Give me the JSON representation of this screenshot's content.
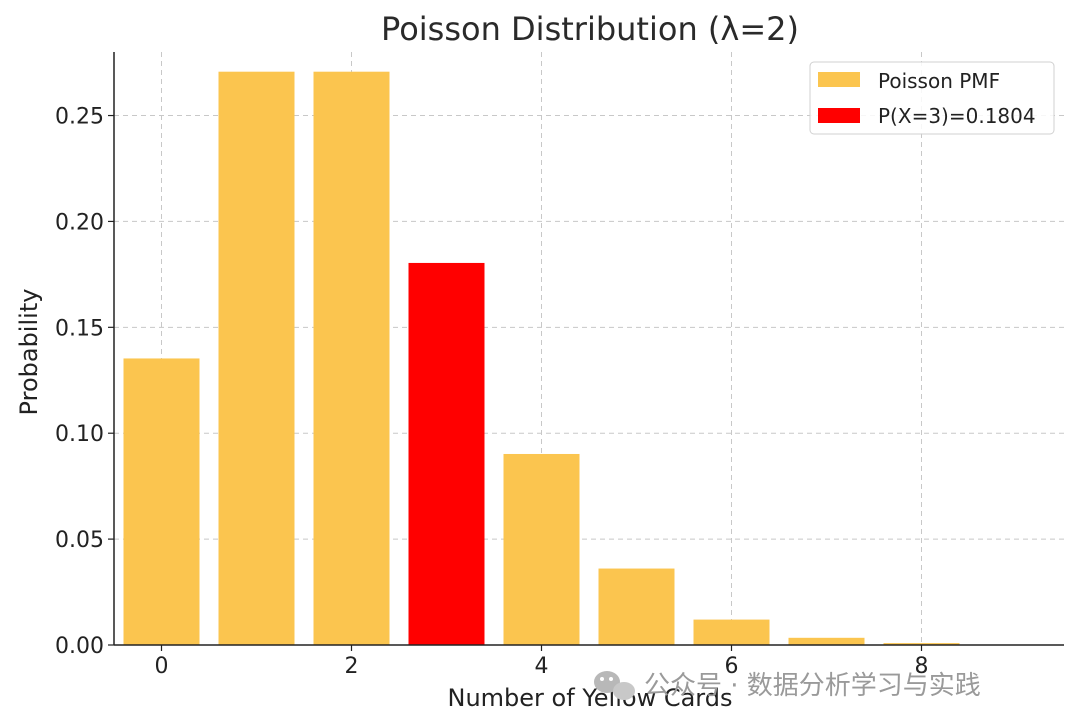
{
  "chart_data": {
    "type": "bar",
    "title": "Poisson Distribution (λ=2)",
    "xlabel": "Number of Yellow Cards",
    "ylabel": "Probability",
    "x": [
      0,
      1,
      2,
      3,
      4,
      5,
      6,
      7,
      8,
      9
    ],
    "series": [
      {
        "name": "Poisson PMF",
        "color": "#fbc54f",
        "x": [
          0,
          1,
          2,
          4,
          5,
          6,
          7,
          8,
          9
        ],
        "values": [
          0.1353,
          0.2707,
          0.2707,
          0.0902,
          0.0361,
          0.012,
          0.0034,
          0.0009,
          0.0002
        ]
      },
      {
        "name": "P(X=3)=0.1804",
        "color": "#ff0000",
        "x": [
          3
        ],
        "values": [
          0.1804
        ]
      }
    ],
    "xlim": [
      -0.5,
      9.5
    ],
    "ylim": [
      0,
      0.28
    ],
    "xticks": [
      0,
      2,
      4,
      6,
      8
    ],
    "yticks": [
      "0.00",
      "0.05",
      "0.10",
      "0.15",
      "0.20",
      "0.25"
    ],
    "grid": true,
    "legend_position": "top-right"
  },
  "watermark": {
    "icon": "wechat-icon",
    "text": "公众号 · 数据分析学习与实践"
  }
}
